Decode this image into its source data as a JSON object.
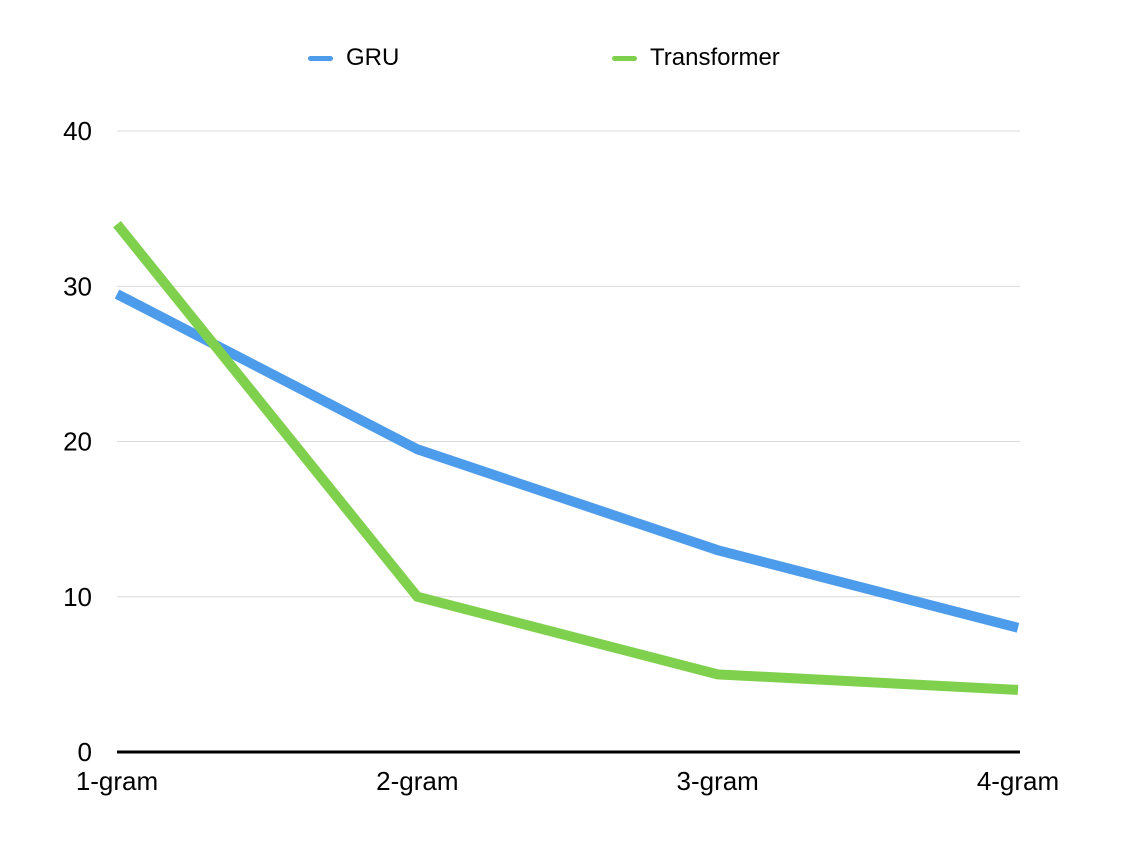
{
  "chart_data": {
    "type": "line",
    "title": "",
    "xlabel": "",
    "ylabel": "",
    "categories": [
      "1-gram",
      "2-gram",
      "3-gram",
      "4-gram"
    ],
    "series": [
      {
        "name": "GRU",
        "color": "#4D9CEC",
        "values": [
          29.5,
          19.5,
          13,
          8
        ]
      },
      {
        "name": "Transformer",
        "color": "#7FD14D",
        "values": [
          34,
          10,
          5,
          4
        ]
      }
    ],
    "ylim": [
      0,
      40
    ],
    "yticks": [
      0,
      10,
      20,
      30,
      40
    ],
    "grid": true,
    "legend_position": "top",
    "line_width": 10,
    "gridline_color": "#D9D9D9",
    "axis_color": "#000000",
    "text_color": "#000000",
    "background_color": "#FFFFFF"
  }
}
